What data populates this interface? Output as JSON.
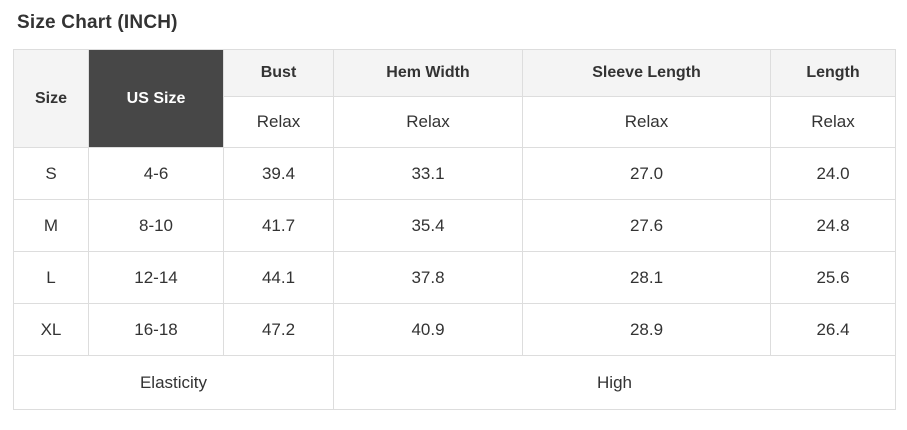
{
  "title": "Size Chart (INCH)",
  "colors": {
    "header_bg": "#f4f4f4",
    "us_size_cell_bg": "#474747",
    "us_size_cell_text": "#ffffff",
    "border": "#dddddd",
    "text": "#333333",
    "row_bg": "#ffffff"
  },
  "table": {
    "corner": {
      "size_label": "Size",
      "us_size_label": "US Size"
    },
    "measure_columns": [
      {
        "label": "Bust",
        "fit": "Relax"
      },
      {
        "label": "Hem Width",
        "fit": "Relax"
      },
      {
        "label": "Sleeve Length",
        "fit": "Relax"
      },
      {
        "label": "Length",
        "fit": "Relax"
      }
    ],
    "rows": [
      {
        "size": "S",
        "us_size": "4-6",
        "values": [
          "39.4",
          "33.1",
          "27.0",
          "24.0"
        ]
      },
      {
        "size": "M",
        "us_size": "8-10",
        "values": [
          "41.7",
          "35.4",
          "27.6",
          "24.8"
        ]
      },
      {
        "size": "L",
        "us_size": "12-14",
        "values": [
          "44.1",
          "37.8",
          "28.1",
          "25.6"
        ]
      },
      {
        "size": "XL",
        "us_size": "16-18",
        "values": [
          "47.2",
          "40.9",
          "28.9",
          "26.4"
        ]
      }
    ],
    "footer": {
      "label": "Elasticity",
      "value": "High"
    }
  },
  "chart_data": {
    "type": "table",
    "title": "Size Chart (INCH)",
    "unit": "INCH",
    "columns": [
      "Size",
      "US Size",
      "Bust (Relax)",
      "Hem Width (Relax)",
      "Sleeve Length (Relax)",
      "Length (Relax)"
    ],
    "rows": [
      [
        "S",
        "4-6",
        39.4,
        33.1,
        27.0,
        24.0
      ],
      [
        "M",
        "8-10",
        41.7,
        35.4,
        27.6,
        24.8
      ],
      [
        "L",
        "12-14",
        44.1,
        37.8,
        28.1,
        25.6
      ],
      [
        "XL",
        "16-18",
        47.2,
        40.9,
        28.9,
        26.4
      ]
    ],
    "footer": [
      "Elasticity",
      "High"
    ]
  }
}
